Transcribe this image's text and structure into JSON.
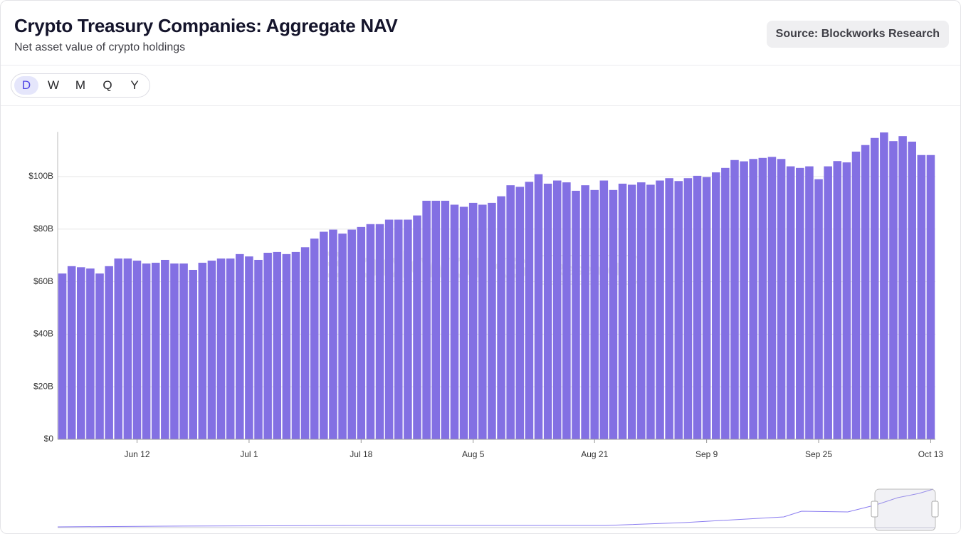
{
  "header": {
    "title": "Crypto Treasury Companies: Aggregate NAV",
    "subtitle": "Net asset value of crypto holdings",
    "source": "Source: Blockworks Research"
  },
  "periods": [
    "D",
    "W",
    "M",
    "Q",
    "Y"
  ],
  "watermark": [
    "Blockworks",
    "Research"
  ],
  "chart_data": {
    "type": "bar",
    "color": "#8370e3",
    "categories": [
      null,
      null,
      null,
      null,
      null,
      null,
      null,
      null,
      "Jun 12",
      null,
      null,
      null,
      null,
      null,
      null,
      null,
      null,
      null,
      null,
      null,
      "Jul 1",
      null,
      null,
      null,
      null,
      null,
      null,
      null,
      null,
      null,
      null,
      null,
      "Jul 18",
      null,
      null,
      null,
      null,
      null,
      null,
      null,
      null,
      null,
      null,
      null,
      "Aug 5",
      null,
      null,
      null,
      null,
      null,
      null,
      null,
      null,
      null,
      null,
      null,
      null,
      "Aug 21",
      null,
      null,
      null,
      null,
      null,
      null,
      null,
      null,
      null,
      null,
      null,
      "Sep 9",
      null,
      null,
      null,
      null,
      null,
      null,
      null,
      null,
      null,
      null,
      null,
      "Sep 25",
      null,
      null,
      null,
      null,
      null,
      null,
      null,
      null,
      null,
      null,
      null,
      "Oct 13"
    ],
    "values": [
      63.1,
      65.9,
      65.5,
      65.0,
      63.1,
      65.9,
      68.8,
      68.8,
      68.0,
      66.9,
      67.2,
      68.3,
      66.9,
      66.9,
      64.5,
      67.2,
      68.0,
      68.8,
      68.8,
      70.5,
      69.6,
      68.3,
      71.0,
      71.3,
      70.5,
      71.3,
      73.1,
      76.4,
      79.0,
      79.8,
      78.3,
      79.8,
      80.8,
      81.9,
      81.9,
      83.6,
      83.6,
      83.6,
      85.2,
      90.8,
      90.8,
      90.8,
      89.3,
      88.5,
      90.0,
      89.3,
      90.0,
      92.5,
      96.7,
      96.1,
      98.0,
      100.9,
      97.3,
      98.5,
      97.8,
      94.6,
      96.7,
      94.9,
      98.5,
      94.9,
      97.3,
      96.9,
      97.8,
      96.9,
      98.5,
      99.4,
      98.3,
      99.4,
      100.3,
      99.8,
      101.6,
      103.3,
      106.3,
      105.8,
      106.7,
      107.1,
      107.5,
      106.7,
      103.9,
      103.3,
      103.9,
      99.0,
      103.9,
      105.9,
      105.4,
      109.5,
      112.0,
      114.7,
      116.8,
      113.5,
      115.4,
      113.3,
      108.2,
      108.2
    ],
    "ylim": [
      0,
      117
    ],
    "yticks": [
      {
        "value": 0,
        "label": "$0"
      },
      {
        "value": 20,
        "label": "$20B"
      },
      {
        "value": 40,
        "label": "$40B"
      },
      {
        "value": 60,
        "label": "$60B"
      },
      {
        "value": 80,
        "label": "$80B"
      },
      {
        "value": 100,
        "label": "$100B"
      }
    ],
    "grid": true
  }
}
